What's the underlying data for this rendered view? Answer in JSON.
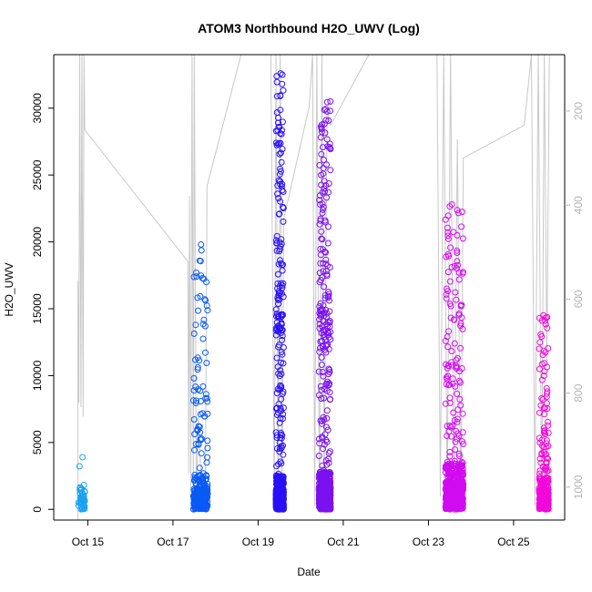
{
  "chart_data": {
    "type": "scatter",
    "title": "ATOM3 Northbound H2O_UWV (Log)",
    "xlabel": "Date",
    "ylabel": "H2O_UWV",
    "x_tick_labels": [
      "Oct 15",
      "Oct 17",
      "Oct 19",
      "Oct 21",
      "Oct 23",
      "Oct 25"
    ],
    "x_tick_days": [
      15,
      17,
      19,
      21,
      23,
      25
    ],
    "xlim_days": [
      14.2,
      26.2
    ],
    "ylim": [
      -800,
      34000
    ],
    "y_ticks": [
      0,
      5000,
      10000,
      15000,
      20000,
      25000,
      30000
    ],
    "y2_ticks": [
      200,
      400,
      600,
      800,
      1000
    ],
    "y2lim": [
      1070,
      80
    ],
    "y2_reversed": true,
    "y2_color": "#b5b5b5",
    "grid": false,
    "series": [
      {
        "color": "#1aa2f0",
        "x_range_days": [
          14.78,
          14.93
        ],
        "y_max": 3900,
        "dense_max": 1800,
        "sparse_count": 25
      },
      {
        "color": "#0a5af5",
        "x_range_days": [
          17.48,
          17.82
        ],
        "y_max": 19800,
        "dense_max": 2600,
        "sparse_count": 170
      },
      {
        "color": "#2a10f5",
        "x_range_days": [
          19.42,
          19.6
        ],
        "y_max": 32600,
        "dense_max": 2500,
        "sparse_count": 420
      },
      {
        "color": "#7a12ee",
        "x_range_days": [
          20.43,
          20.7
        ],
        "y_max": 30500,
        "dense_max": 2800,
        "sparse_count": 520
      },
      {
        "color": "#d10cf0",
        "x_range_days": [
          23.4,
          23.82
        ],
        "y_max": 22800,
        "dense_max": 3500,
        "sparse_count": 340
      },
      {
        "color": "#f00ad8",
        "x_range_days": [
          25.6,
          25.82
        ],
        "y_max": 14500,
        "dense_max": 2400,
        "sparse_count": 180
      }
    ],
    "pressure_line": [
      {
        "x": 14.77,
        "y": 1070
      },
      {
        "x": 14.77,
        "y": 560
      },
      {
        "x": 14.79,
        "y": 820
      },
      {
        "x": 14.81,
        "y": 80
      },
      {
        "x": 14.84,
        "y": 830
      },
      {
        "x": 14.86,
        "y": 80
      },
      {
        "x": 14.89,
        "y": 850
      },
      {
        "x": 14.91,
        "y": 80
      },
      {
        "x": 14.93,
        "y": 240
      },
      {
        "x": 17.35,
        "y": 520
      },
      {
        "x": 17.37,
        "y": 970
      },
      {
        "x": 17.39,
        "y": 380
      },
      {
        "x": 17.42,
        "y": 1000
      },
      {
        "x": 17.45,
        "y": 80
      },
      {
        "x": 17.48,
        "y": 1020
      },
      {
        "x": 17.5,
        "y": 80
      },
      {
        "x": 17.55,
        "y": 1030
      },
      {
        "x": 17.6,
        "y": 850
      },
      {
        "x": 17.68,
        "y": 1030
      },
      {
        "x": 17.76,
        "y": 1040
      },
      {
        "x": 17.8,
        "y": 360
      },
      {
        "x": 18.6,
        "y": 80
      },
      {
        "x": 19.3,
        "y": 80
      },
      {
        "x": 19.38,
        "y": 1030
      },
      {
        "x": 19.42,
        "y": 80
      },
      {
        "x": 19.47,
        "y": 1040
      },
      {
        "x": 19.52,
        "y": 80
      },
      {
        "x": 19.56,
        "y": 1040
      },
      {
        "x": 19.6,
        "y": 430
      },
      {
        "x": 20.2,
        "y": 190
      },
      {
        "x": 20.28,
        "y": 80
      },
      {
        "x": 20.33,
        "y": 1040
      },
      {
        "x": 20.38,
        "y": 80
      },
      {
        "x": 20.44,
        "y": 1040
      },
      {
        "x": 20.5,
        "y": 80
      },
      {
        "x": 20.55,
        "y": 1040
      },
      {
        "x": 20.62,
        "y": 200
      },
      {
        "x": 20.7,
        "y": 230
      },
      {
        "x": 21.6,
        "y": 80
      },
      {
        "x": 23.2,
        "y": 80
      },
      {
        "x": 23.28,
        "y": 1020
      },
      {
        "x": 23.36,
        "y": 80
      },
      {
        "x": 23.44,
        "y": 1030
      },
      {
        "x": 23.52,
        "y": 80
      },
      {
        "x": 23.6,
        "y": 1040
      },
      {
        "x": 23.68,
        "y": 260
      },
      {
        "x": 23.76,
        "y": 1040
      },
      {
        "x": 23.82,
        "y": 300
      },
      {
        "x": 25.25,
        "y": 230
      },
      {
        "x": 25.42,
        "y": 80
      },
      {
        "x": 25.5,
        "y": 1040
      },
      {
        "x": 25.58,
        "y": 80
      },
      {
        "x": 25.66,
        "y": 1040
      },
      {
        "x": 25.72,
        "y": 80
      },
      {
        "x": 25.78,
        "y": 740
      },
      {
        "x": 25.84,
        "y": 80
      }
    ]
  }
}
